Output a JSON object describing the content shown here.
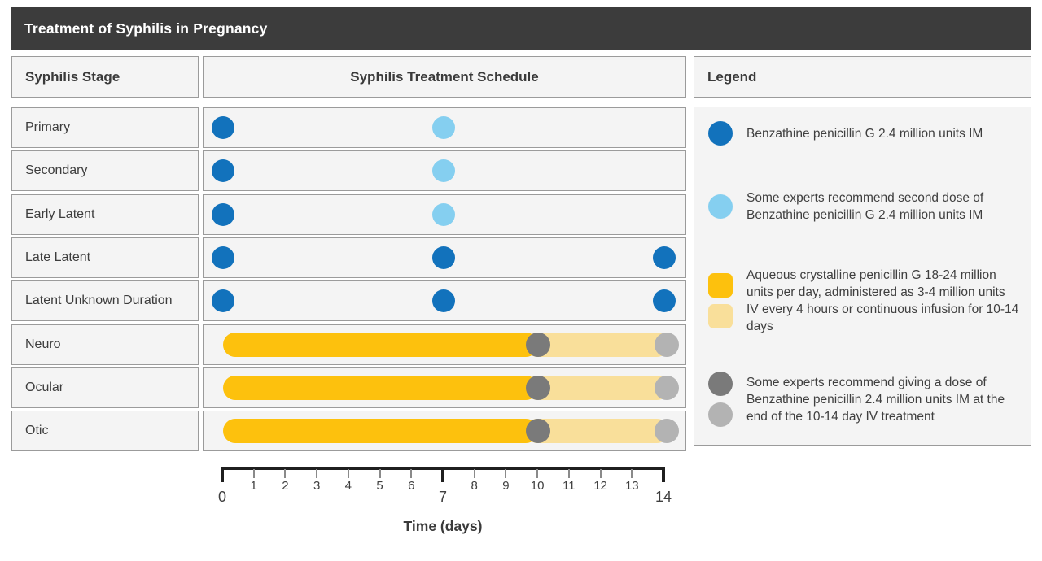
{
  "title": "Treatment of Syphilis in Pregnancy",
  "columns": {
    "stage_header": "Syphilis Stage",
    "schedule_header": "Syphilis Treatment Schedule"
  },
  "legend": {
    "title": "Legend",
    "items": [
      {
        "swatches": [
          {
            "shape": "circle",
            "color": "#1272BC"
          }
        ],
        "text": "Benzathine penicillin G 2.4 million units IM"
      },
      {
        "swatches": [
          {
            "shape": "circle",
            "color": "#85CFF0"
          }
        ],
        "text": "Some experts recommend second dose of Benzathine penicillin G 2.4 million units IM"
      },
      {
        "swatches": [
          {
            "shape": "square",
            "color": "#FDC10D"
          },
          {
            "shape": "square",
            "color": "#F9DF9A"
          }
        ],
        "text": "Aqueous crystalline penicillin G 18-24 million units per day, administered as 3-4 million units IV every 4 hours or continuous infusion for 10-14 days"
      },
      {
        "swatches": [
          {
            "shape": "circle",
            "color": "#7A7A7A"
          },
          {
            "shape": "circle",
            "color": "#B3B3B3"
          }
        ],
        "text": "Some experts recommend giving a dose of Benzathine penicillin 2.4 million units IM at the end of the 10-14 day IV treatment"
      }
    ]
  },
  "chart_data": {
    "type": "timeline",
    "x_axis": {
      "label": "Time (days)",
      "min": 0,
      "max": 14,
      "ticks": [
        0,
        1,
        2,
        3,
        4,
        5,
        6,
        7,
        8,
        9,
        10,
        11,
        12,
        13,
        14
      ],
      "major_ticks": [
        0,
        7,
        14
      ]
    },
    "marker_types": {
      "benzathine_im": {
        "color": "#1272BC",
        "meaning": "Benzathine penicillin G 2.4 million units IM"
      },
      "second_dose_im": {
        "color": "#85CFF0",
        "meaning": "Optional second dose of Benzathine penicillin G 2.4 million units IM"
      },
      "end_iv_dose_early": {
        "color": "#7A7A7A",
        "meaning": "Optional Benzathine penicillin 2.4 million units IM at end of 10-14 day IV treatment (day 10)"
      },
      "end_iv_dose_late": {
        "color": "#B3B3B3",
        "meaning": "Optional Benzathine penicillin 2.4 million units IM at end of 10-14 day IV treatment (day 14)"
      }
    },
    "bar_types": {
      "iv_intensive": {
        "color": "#FDC10D",
        "meaning": "Aqueous crystalline penicillin G IV, days 0-10"
      },
      "iv_extension": {
        "color": "#F9DF9A",
        "meaning": "Aqueous crystalline penicillin G IV, optional days 10-14"
      }
    },
    "rows": [
      {
        "stage": "Primary",
        "bars": [],
        "markers": [
          {
            "day": 0,
            "type": "benzathine_im"
          },
          {
            "day": 7,
            "type": "second_dose_im"
          }
        ]
      },
      {
        "stage": "Secondary",
        "bars": [],
        "markers": [
          {
            "day": 0,
            "type": "benzathine_im"
          },
          {
            "day": 7,
            "type": "second_dose_im"
          }
        ]
      },
      {
        "stage": "Early Latent",
        "bars": [],
        "markers": [
          {
            "day": 0,
            "type": "benzathine_im"
          },
          {
            "day": 7,
            "type": "second_dose_im"
          }
        ]
      },
      {
        "stage": "Late Latent",
        "bars": [],
        "markers": [
          {
            "day": 0,
            "type": "benzathine_im"
          },
          {
            "day": 7,
            "type": "benzathine_im"
          },
          {
            "day": 14,
            "type": "benzathine_im"
          }
        ]
      },
      {
        "stage": "Latent Unknown Duration",
        "bars": [],
        "markers": [
          {
            "day": 0,
            "type": "benzathine_im"
          },
          {
            "day": 7,
            "type": "benzathine_im"
          },
          {
            "day": 14,
            "type": "benzathine_im"
          }
        ]
      },
      {
        "stage": "Neuro",
        "bars": [
          {
            "start": 0,
            "end": 10,
            "type": "iv_intensive"
          },
          {
            "start": 10,
            "end": 14,
            "type": "iv_extension"
          }
        ],
        "markers": [
          {
            "day": 10,
            "type": "end_iv_dose_early"
          },
          {
            "day": 14,
            "type": "end_iv_dose_late"
          }
        ]
      },
      {
        "stage": "Ocular",
        "bars": [
          {
            "start": 0,
            "end": 10,
            "type": "iv_intensive"
          },
          {
            "start": 10,
            "end": 14,
            "type": "iv_extension"
          }
        ],
        "markers": [
          {
            "day": 10,
            "type": "end_iv_dose_early"
          },
          {
            "day": 14,
            "type": "end_iv_dose_late"
          }
        ]
      },
      {
        "stage": "Otic",
        "bars": [
          {
            "start": 0,
            "end": 10,
            "type": "iv_intensive"
          },
          {
            "start": 10,
            "end": 14,
            "type": "iv_extension"
          }
        ],
        "markers": [
          {
            "day": 10,
            "type": "end_iv_dose_early"
          },
          {
            "day": 14,
            "type": "end_iv_dose_late"
          }
        ]
      }
    ]
  }
}
